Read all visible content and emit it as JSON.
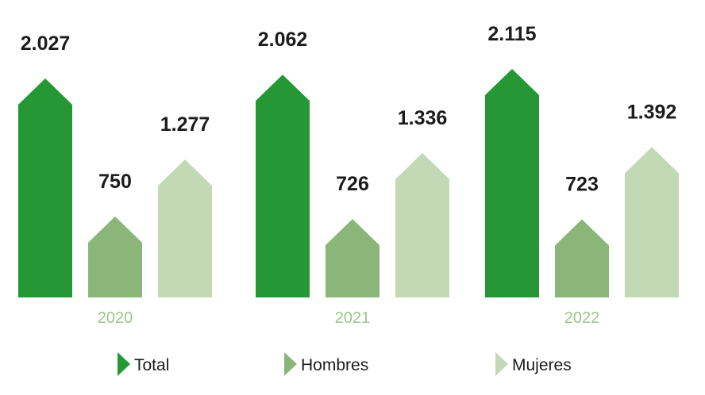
{
  "chart_data": {
    "type": "bar",
    "categories": [
      "2020",
      "2021",
      "2022"
    ],
    "series": [
      {
        "name": "Total",
        "values": [
          2027,
          2062,
          2115
        ],
        "labels": [
          "2.027",
          "2.062",
          "2.115"
        ],
        "color": "#259735"
      },
      {
        "name": "Hombres",
        "values": [
          750,
          726,
          723
        ],
        "labels": [
          "750",
          "726",
          "723"
        ],
        "color": "#8bb679"
      },
      {
        "name": "Mujeres",
        "values": [
          1277,
          1336,
          1392
        ],
        "labels": [
          "1.277",
          "1.336",
          "1.392"
        ],
        "color": "#c3d9b6"
      }
    ],
    "year_color": "#9cc58a",
    "grid": false,
    "legend_position": "bottom"
  }
}
